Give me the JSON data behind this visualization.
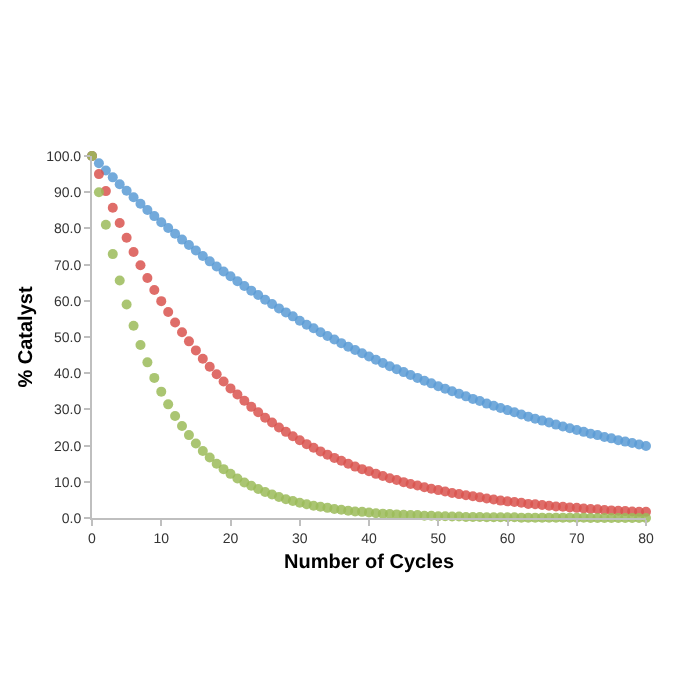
{
  "chart_data": {
    "type": "scatter",
    "xlabel": "Number of Cycles",
    "ylabel": "% Catalyst",
    "marker": "circle",
    "x": [
      0,
      1,
      2,
      3,
      4,
      5,
      6,
      7,
      8,
      9,
      10,
      11,
      12,
      13,
      14,
      15,
      16,
      17,
      18,
      19,
      20,
      21,
      22,
      23,
      24,
      25,
      26,
      27,
      28,
      29,
      30,
      31,
      32,
      33,
      34,
      35,
      36,
      37,
      38,
      39,
      40,
      41,
      42,
      43,
      44,
      45,
      46,
      47,
      48,
      49,
      50,
      51,
      52,
      53,
      54,
      55,
      56,
      57,
      58,
      59,
      60,
      61,
      62,
      63,
      64,
      65,
      66,
      67,
      68,
      69,
      70,
      71,
      72,
      73,
      74,
      75,
      76,
      77,
      78,
      79,
      80
    ],
    "xlim": [
      0,
      80
    ],
    "xticks": [
      0,
      10,
      20,
      30,
      40,
      50,
      60,
      70,
      80
    ],
    "ylim": [
      0,
      100
    ],
    "yticks": [
      {
        "value": 0,
        "label": "0.0"
      },
      {
        "value": 10,
        "label": "10.0"
      },
      {
        "value": 20,
        "label": "20.0"
      },
      {
        "value": 30,
        "label": "30.0"
      },
      {
        "value": 40,
        "label": "40.0"
      },
      {
        "value": 50,
        "label": "50.0"
      },
      {
        "value": 60,
        "label": "60.0"
      },
      {
        "value": 70,
        "label": "70.0"
      },
      {
        "value": 80,
        "label": "80.0"
      },
      {
        "value": 90,
        "label": "90.0"
      },
      {
        "value": 100,
        "label": "100.0"
      }
    ],
    "series": [
      {
        "color": "#5b9bd5",
        "values": [
          100,
          98,
          96.0,
          94.1,
          92.2,
          90.4,
          88.6,
          86.8,
          85.1,
          83.4,
          81.7,
          80.1,
          78.5,
          76.9,
          75.4,
          73.9,
          72.4,
          70.9,
          69.5,
          68.1,
          66.8,
          65.4,
          64.1,
          62.8,
          61.6,
          60.3,
          59.1,
          57.9,
          56.8,
          55.7,
          54.5,
          53.4,
          52.4,
          51.3,
          50.3,
          49.3,
          48.3,
          47.3,
          46.4,
          45.5,
          44.6,
          43.7,
          42.8,
          41.9,
          41.1,
          40.3,
          39.5,
          38.7,
          37.9,
          37.2,
          36.4,
          35.7,
          35.0,
          34.3,
          33.6,
          32.9,
          32.3,
          31.6,
          31.0,
          30.4,
          29.8,
          29.2,
          28.6,
          28.0,
          27.4,
          26.9,
          26.4,
          25.8,
          25.3,
          24.8,
          24.3,
          23.8,
          23.3,
          22.9,
          22.4,
          22.0,
          21.5,
          21.1,
          20.7,
          20.3,
          19.9
        ]
      },
      {
        "color": "#d9534f",
        "values": [
          100,
          95,
          90.3,
          85.7,
          81.5,
          77.4,
          73.5,
          69.8,
          66.3,
          63.0,
          59.9,
          56.9,
          54.0,
          51.3,
          48.8,
          46.3,
          44.0,
          41.8,
          39.7,
          37.7,
          35.8,
          34.1,
          32.4,
          30.7,
          29.2,
          27.7,
          26.4,
          25.0,
          23.8,
          22.6,
          21.5,
          20.4,
          19.4,
          18.4,
          17.5,
          16.6,
          15.8,
          15.0,
          14.2,
          13.5,
          12.9,
          12.2,
          11.6,
          11.0,
          10.5,
          9.9,
          9.4,
          9.0,
          8.5,
          8.1,
          7.7,
          7.3,
          6.9,
          6.6,
          6.3,
          6.0,
          5.7,
          5.4,
          5.1,
          4.8,
          4.6,
          4.4,
          4.2,
          3.9,
          3.8,
          3.6,
          3.4,
          3.2,
          3.1,
          2.9,
          2.8,
          2.6,
          2.5,
          2.4,
          2.2,
          2.1,
          2.0,
          1.9,
          1.8,
          1.7,
          1.7
        ]
      },
      {
        "color": "#9bbb59",
        "values": [
          100,
          90,
          81,
          72.9,
          65.6,
          59.0,
          53.1,
          47.8,
          43.0,
          38.7,
          34.9,
          31.4,
          28.2,
          25.4,
          22.9,
          20.6,
          18.5,
          16.7,
          15.0,
          13.5,
          12.2,
          10.9,
          9.8,
          8.9,
          8.0,
          7.2,
          6.5,
          5.8,
          5.2,
          4.7,
          4.2,
          3.8,
          3.4,
          3.1,
          2.8,
          2.5,
          2.3,
          2.0,
          1.8,
          1.7,
          1.5,
          1.3,
          1.2,
          1.1,
          1.0,
          0.9,
          0.8,
          0.8,
          0.6,
          0.6,
          0.5,
          0.5,
          0.4,
          0.4,
          0.3,
          0.3,
          0.3,
          0.2,
          0.2,
          0.2,
          0.2,
          0.2,
          0.1,
          0.1,
          0.1,
          0.1,
          0.1,
          0.1,
          0.1,
          0.1,
          0.1,
          0.1,
          0.0,
          0.0,
          0.0,
          0.0,
          0.0,
          0.0,
          0.0,
          0.0,
          0.0
        ]
      }
    ]
  }
}
